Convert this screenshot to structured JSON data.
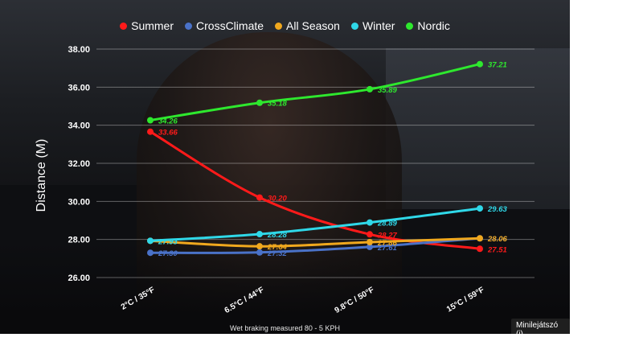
{
  "chart_data": {
    "type": "line",
    "ylabel": "Distance (M)",
    "ylim": [
      26,
      38
    ],
    "yticks": [
      "26.00",
      "28.00",
      "30.00",
      "32.00",
      "34.00",
      "36.00",
      "38.00"
    ],
    "categories": [
      "2°C / 35°F",
      "6.5°C / 44°F",
      "9.8°C / 50°F",
      "15°C / 59°F"
    ],
    "grid": true,
    "legend_position": "top-center",
    "note": "Wet braking measured 80 - 5 KPH",
    "series": [
      {
        "name": "Summer",
        "color": "#ff1a1a",
        "values": [
          33.66,
          30.2,
          28.27,
          27.51
        ]
      },
      {
        "name": "CrossClimate",
        "color": "#4a72c8",
        "values": [
          27.3,
          27.32,
          27.61,
          28.06
        ]
      },
      {
        "name": "All Season",
        "color": "#f0a81e",
        "values": [
          27.93,
          27.64,
          27.86,
          28.06
        ]
      },
      {
        "name": "Winter",
        "color": "#2fd8e8",
        "values": [
          27.93,
          28.28,
          28.89,
          29.63
        ]
      },
      {
        "name": "Nordic",
        "color": "#2ee82e",
        "values": [
          34.26,
          35.18,
          35.89,
          37.21
        ]
      }
    ]
  },
  "ui": {
    "mini_player_label": "Minilejátszó (i)"
  },
  "icons": {
    "legend_marker": "filled-circle"
  }
}
